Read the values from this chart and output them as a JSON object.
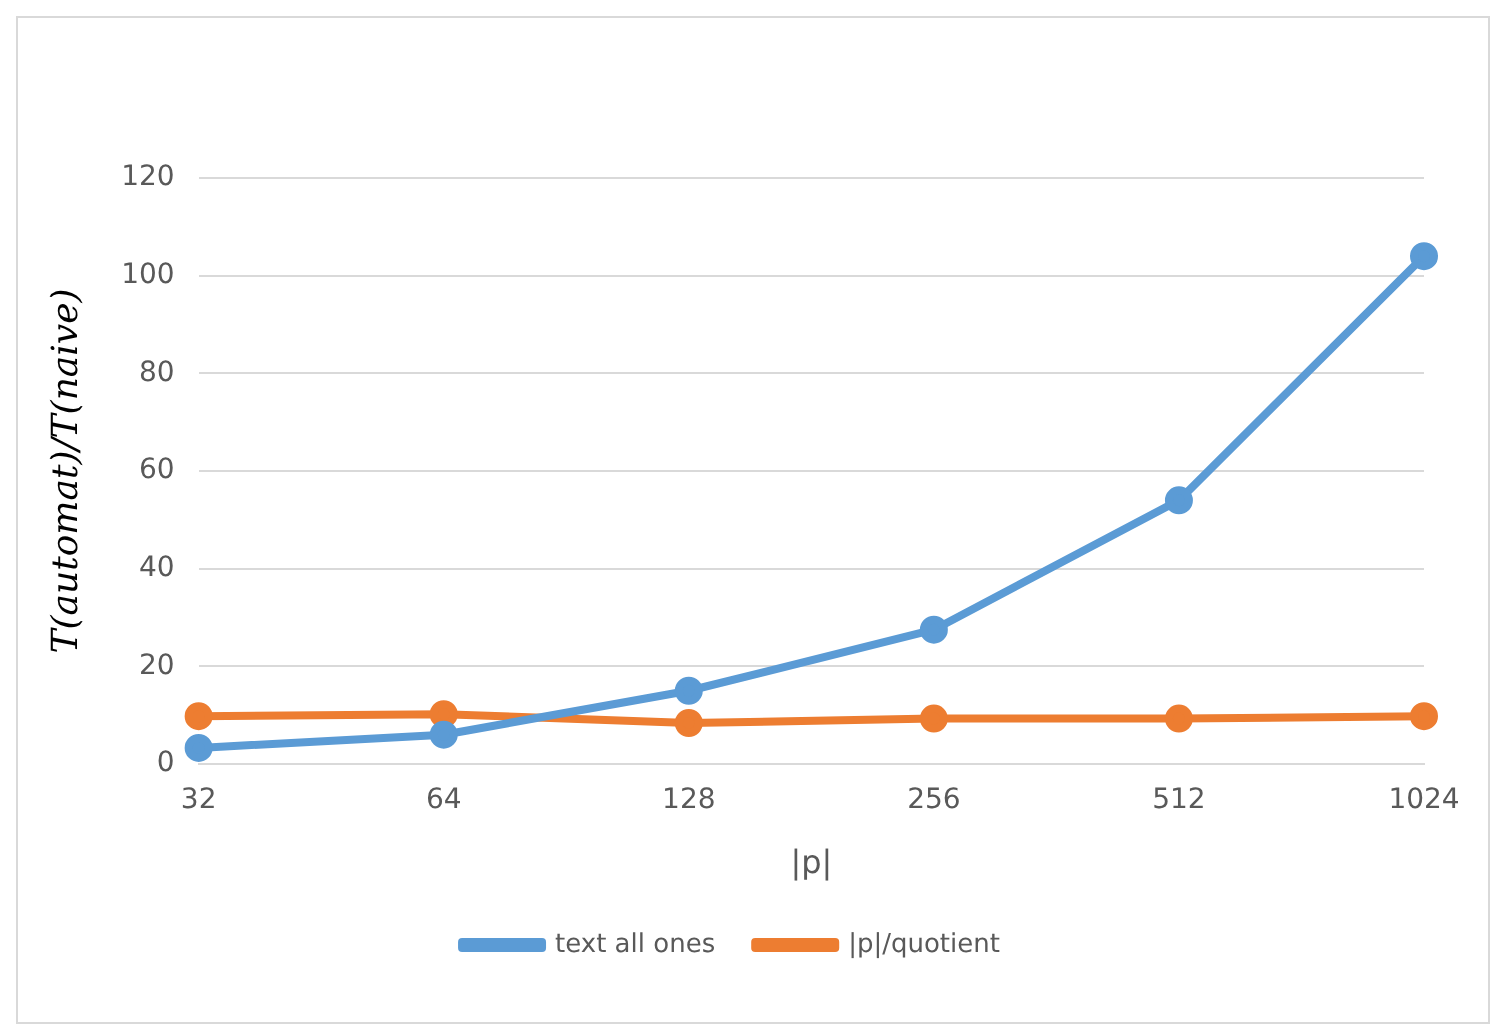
{
  "chart_data": {
    "type": "line",
    "xlabel": "|p|",
    "ylabel": "T(automat)/T(naive)",
    "categories": [
      "32",
      "64",
      "128",
      "256",
      "512",
      "1024"
    ],
    "series": [
      {
        "name": "text all ones",
        "color": "#5b9bd5",
        "values": [
          3.3,
          6,
          15,
          27.5,
          54,
          104
        ]
      },
      {
        "name": "|p|/quotient",
        "color": "#ed7d31",
        "values": [
          9.8,
          10.2,
          8.4,
          9.3,
          9.3,
          9.8
        ]
      }
    ],
    "ylim": [
      0,
      120
    ],
    "yticks": [
      0,
      20,
      40,
      60,
      80,
      100,
      120
    ],
    "grid": "y",
    "legend": "bottom",
    "marker": "circle",
    "line_style": "solid"
  }
}
